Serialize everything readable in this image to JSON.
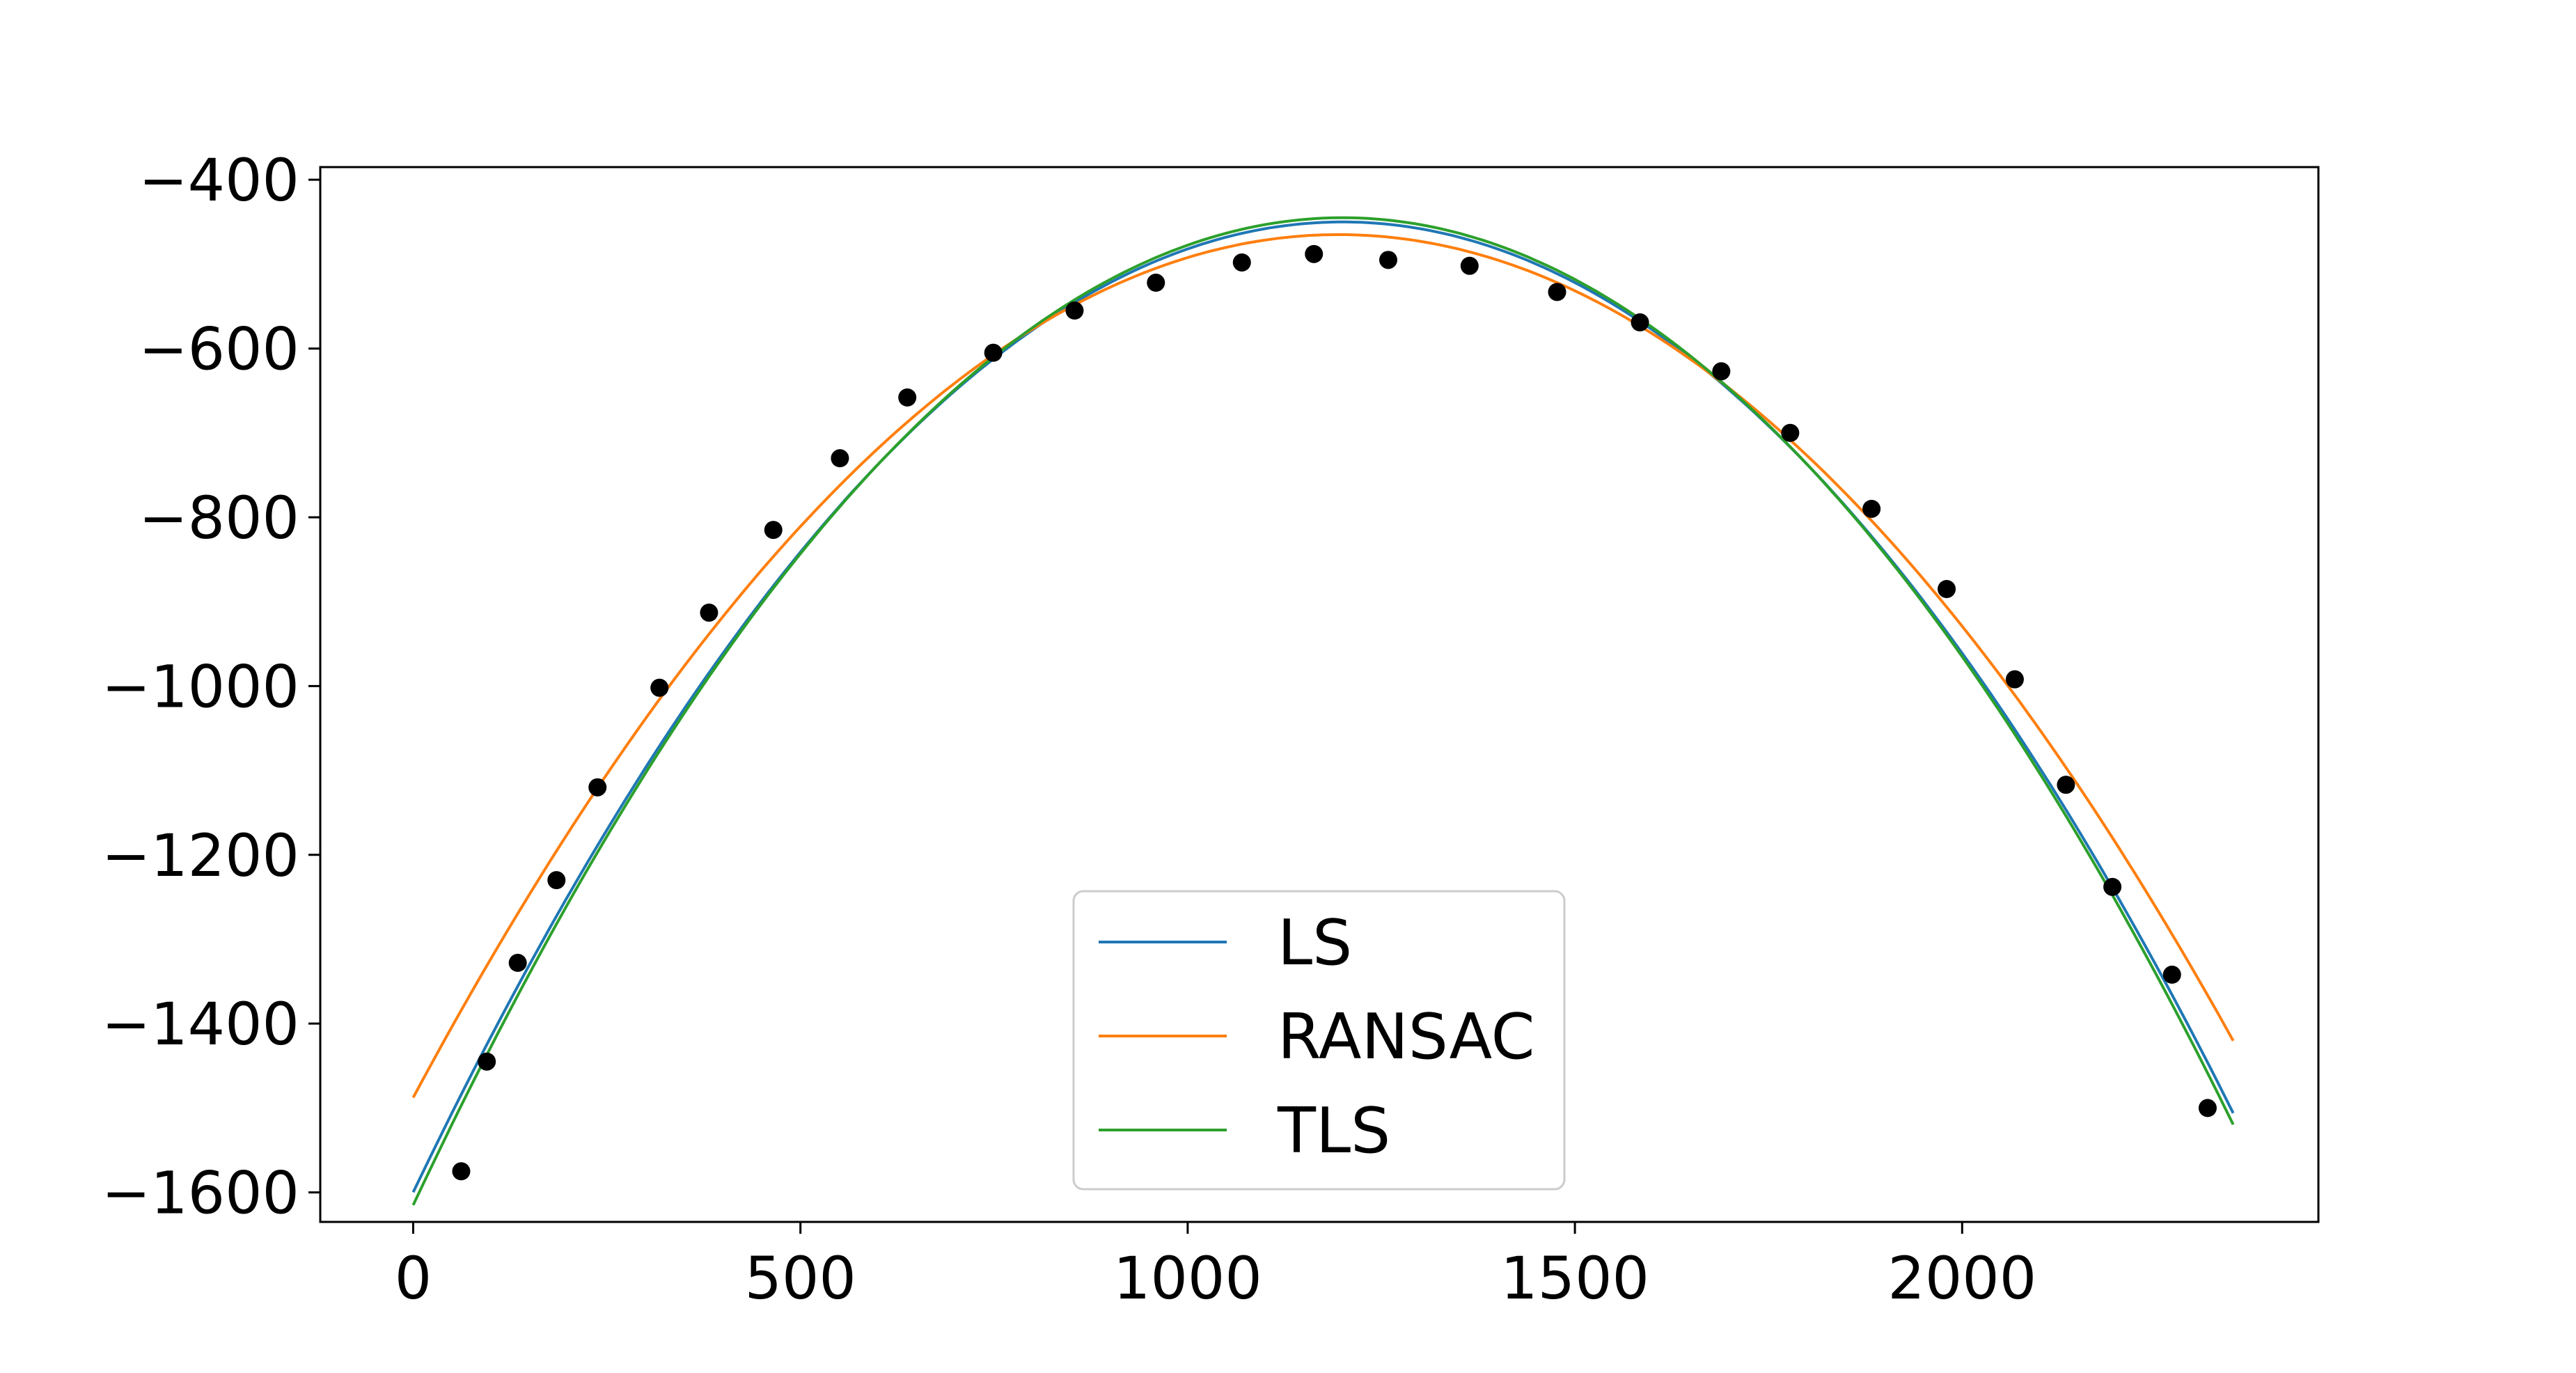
{
  "chart_data": {
    "type": "scatter",
    "title": "",
    "xlabel": "",
    "ylabel": "",
    "xlim": [
      -120,
      2460
    ],
    "ylim": [
      -1635,
      -385
    ],
    "x_ticks": [
      0,
      500,
      1000,
      1500,
      2000
    ],
    "y_ticks": [
      -400,
      -600,
      -800,
      -1000,
      -1200,
      -1400,
      -1600
    ],
    "x_tick_labels": [
      "0",
      "500",
      "1000",
      "1500",
      "2000"
    ],
    "y_tick_labels": [
      "−400",
      "−600",
      "−800",
      "−1000",
      "−1200",
      "−1400",
      "−1600"
    ],
    "grid": false,
    "legend_placement": "lower-center",
    "points": {
      "color": "#000000",
      "x": [
        62,
        95,
        135,
        185,
        238,
        318,
        382,
        465,
        551,
        638,
        749,
        854,
        959,
        1070,
        1163,
        1259,
        1364,
        1477,
        1584,
        1689,
        1778,
        1883,
        1980,
        2068,
        2134,
        2194,
        2271,
        2317
      ],
      "y": [
        -1575,
        -1445,
        -1328,
        -1230,
        -1120,
        -1002,
        -913,
        -815,
        -730,
        -658,
        -605,
        -555,
        -522,
        -498,
        -488,
        -495,
        -502,
        -533,
        -569,
        -627,
        -700,
        -790,
        -885,
        -992,
        -1117,
        -1238,
        -1342,
        -1500
      ]
    },
    "series": [
      {
        "name": "LS",
        "color": "#1f77b4",
        "vertex": [
          1200,
          -450
        ],
        "a": 0.0007985,
        "x_range": [
          0,
          2350
        ]
      },
      {
        "name": "RANSAC",
        "color": "#ff7f0e",
        "vertex": [
          1195,
          -465
        ],
        "a": 0.0007161,
        "x_range": [
          0,
          2350
        ]
      },
      {
        "name": "TLS",
        "color": "#2ca02c",
        "vertex": [
          1200,
          -445
        ],
        "a": 0.0008125,
        "x_range": [
          0,
          2350
        ]
      }
    ]
  }
}
